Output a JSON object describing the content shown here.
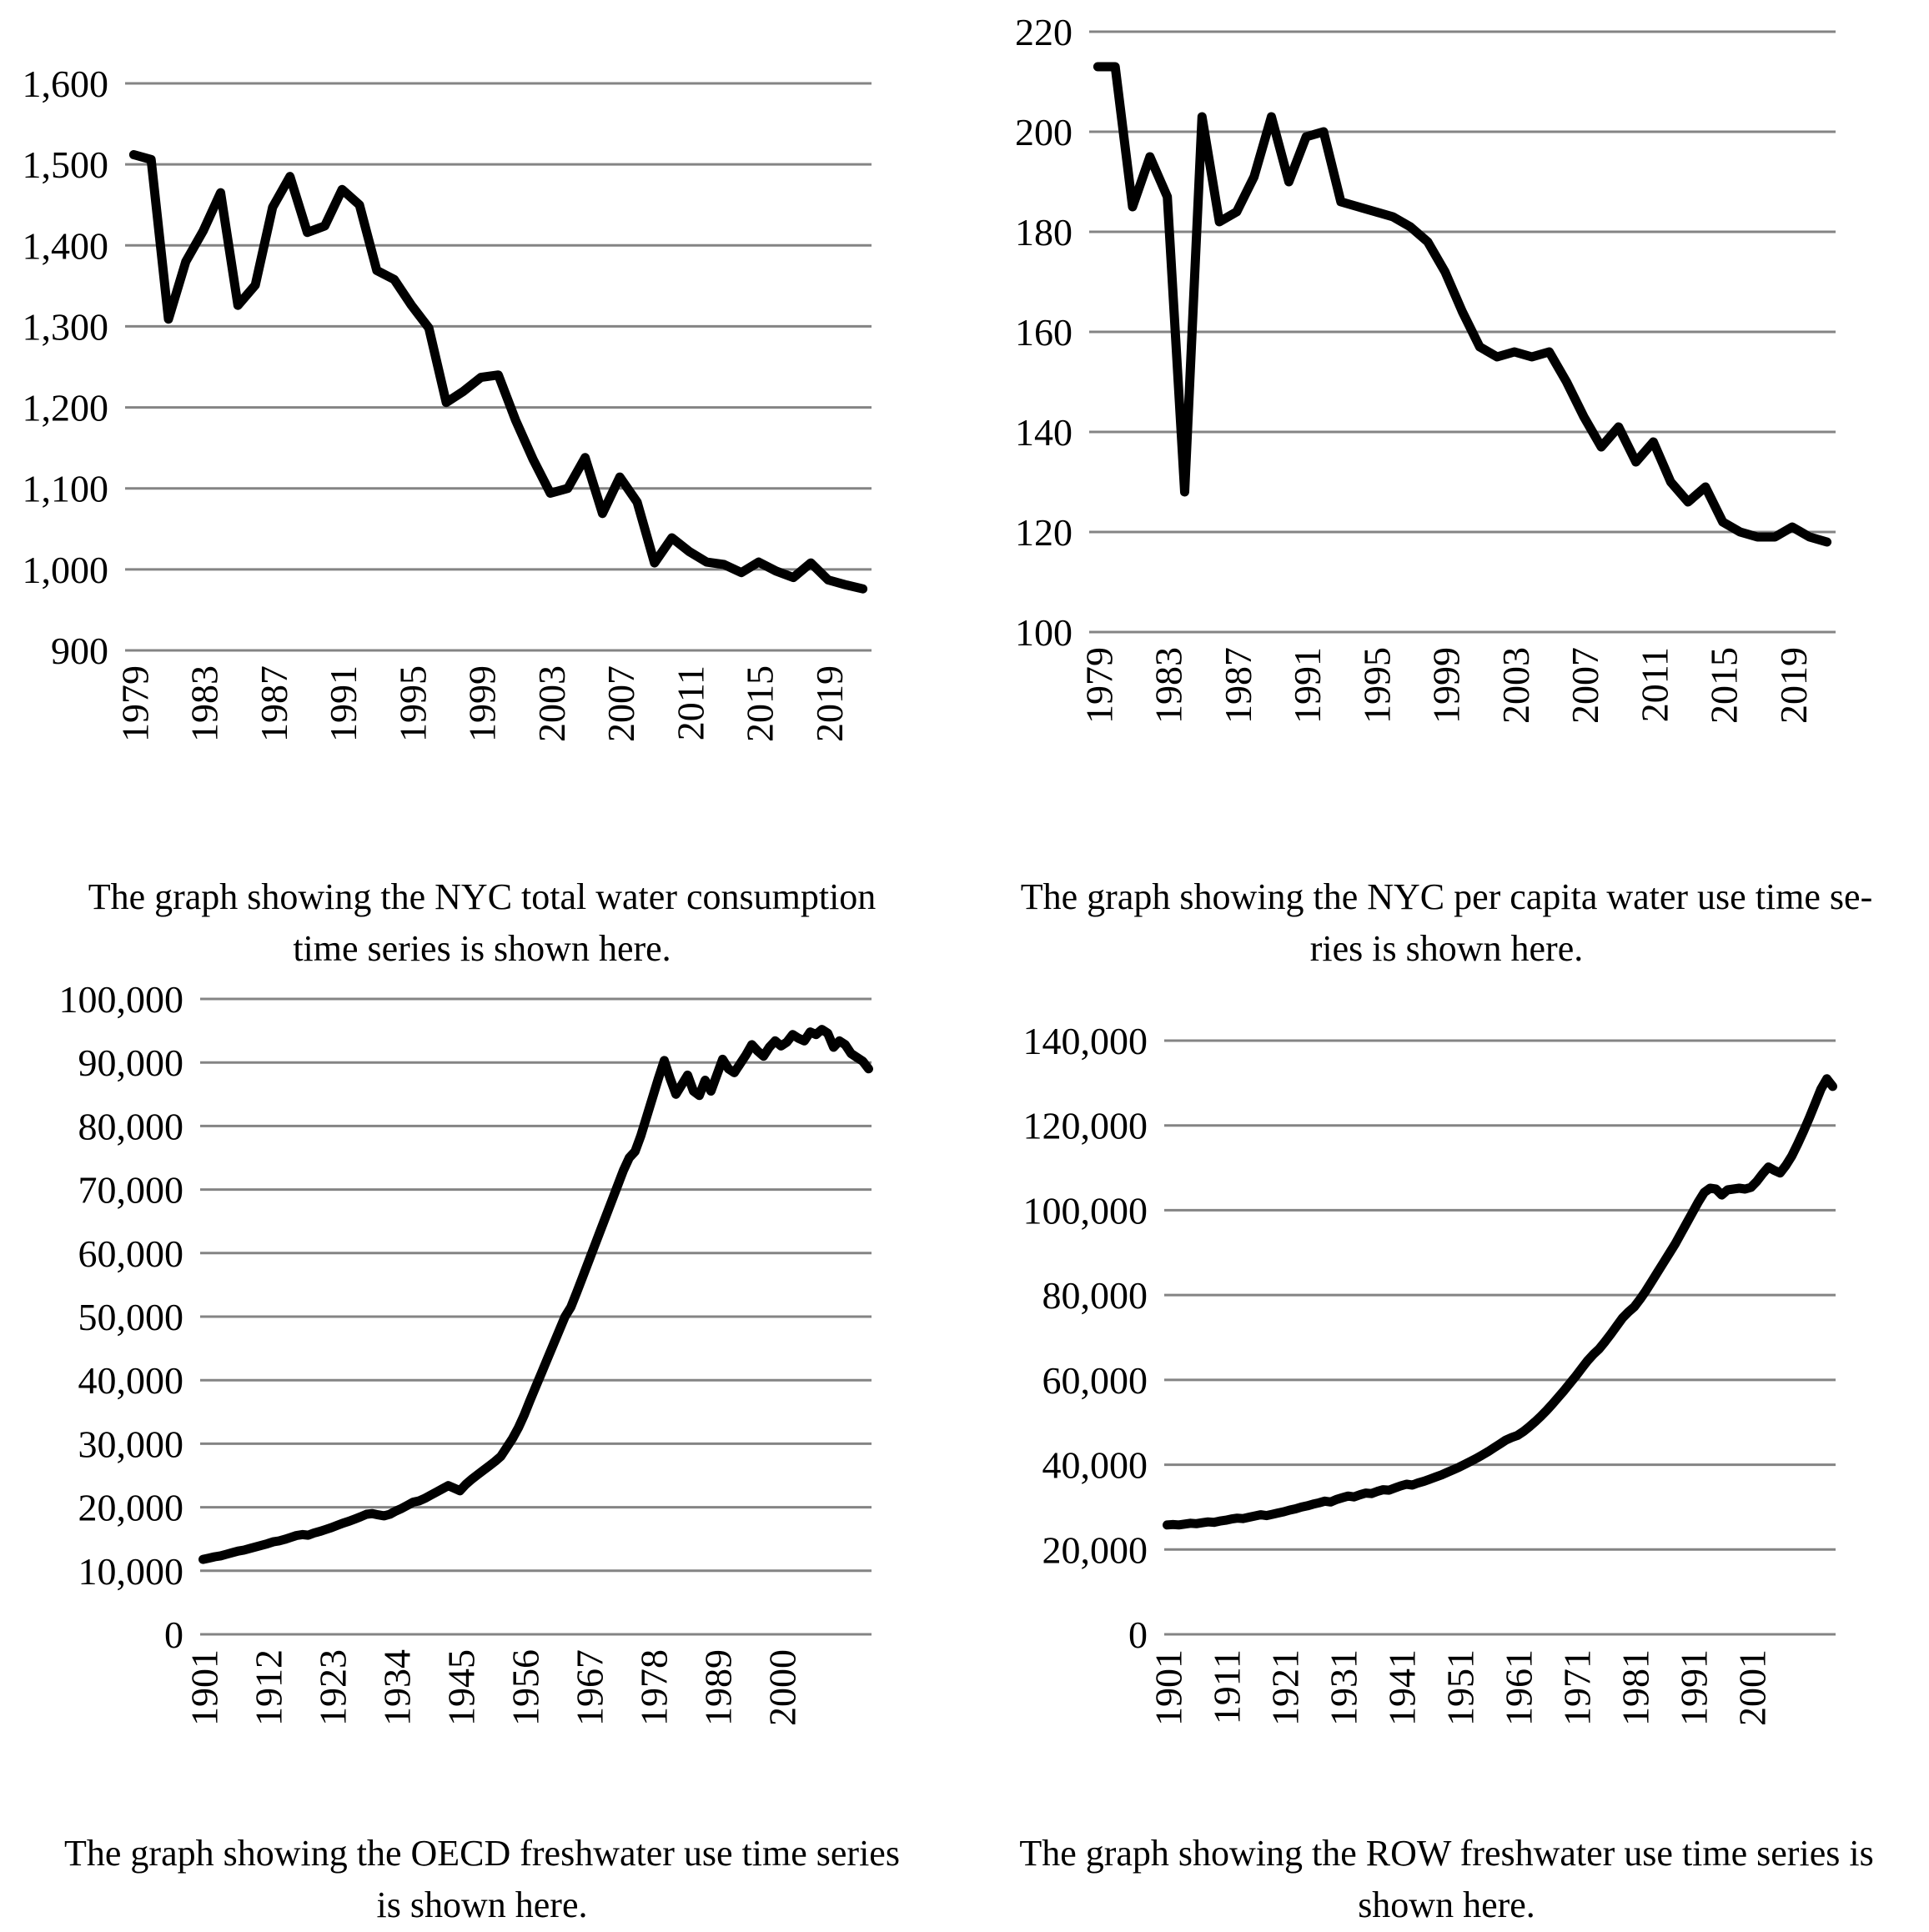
{
  "chart_data": [
    {
      "type": "line",
      "name": "nyc-total-water-consumption",
      "title": "",
      "caption_lines": [
        "The graph showing the NYC total water consumption",
        "time series is shown here."
      ],
      "legend": "none",
      "grid": true,
      "line_color": "#000000",
      "gridline_color": "#848484",
      "x_range": {
        "from": 1979,
        "to": 2021
      },
      "x_tick_labels": [
        "1979",
        "1983",
        "1987",
        "1991",
        "1995",
        "1999",
        "2003",
        "2007",
        "2011",
        "2015",
        "2019"
      ],
      "ylim": [
        900,
        1600
      ],
      "ytick_step": 100,
      "y_tick_labels": [
        "900",
        "1000",
        "1100",
        "1200",
        "1300",
        "1400",
        "1500",
        "1600"
      ],
      "values": [
        1512,
        1506,
        1309,
        1380,
        1418,
        1465,
        1326,
        1351,
        1447,
        1485,
        1416,
        1424,
        1469,
        1450,
        1369,
        1358,
        1326,
        1298,
        1206,
        1220,
        1237,
        1240,
        1184,
        1136,
        1094,
        1100,
        1138,
        1069,
        1114,
        1083,
        1008,
        1039,
        1022,
        1009,
        1006,
        996,
        1009,
        998,
        990,
        1008,
        987,
        981,
        976
      ]
    },
    {
      "type": "line",
      "name": "nyc-per-capita-water-use",
      "title": "",
      "caption_lines": [
        "The graph showing the NYC per capita water use time se-",
        "ries is shown here."
      ],
      "legend": "none",
      "grid": true,
      "line_color": "#000000",
      "gridline_color": "#848484",
      "x_range": {
        "from": 1979,
        "to": 2021
      },
      "x_tick_labels": [
        "1979",
        "1983",
        "1987",
        "1991",
        "1995",
        "1999",
        "2003",
        "2007",
        "2011",
        "2015",
        "2019"
      ],
      "ylim": [
        100,
        220
      ],
      "ytick_step": 20,
      "y_tick_labels": [
        "100",
        "120",
        "140",
        "160",
        "180",
        "200",
        "220"
      ],
      "values": [
        213,
        213,
        185,
        195,
        187,
        128,
        203,
        182,
        184,
        191,
        203,
        190,
        199,
        200,
        186,
        185,
        184,
        183,
        181,
        178,
        172,
        164,
        157,
        155,
        156,
        155,
        156,
        150,
        143,
        137,
        141,
        134,
        138,
        130,
        126,
        129,
        122,
        120,
        119,
        119,
        121,
        119,
        118
      ]
    },
    {
      "type": "line",
      "name": "oecd-freshwater-use",
      "title": "",
      "caption_lines": [
        "The graph showing the OECD freshwater use time series",
        "is shown here."
      ],
      "legend": "none",
      "grid": true,
      "line_color": "#000000",
      "gridline_color": "#848484",
      "x_range": {
        "from": 1901,
        "to": 2015
      },
      "x_tick_labels": [
        "1901",
        "1912",
        "1923",
        "1934",
        "1945",
        "1956",
        "1967",
        "1978",
        "1989",
        "2000"
      ],
      "ylim": [
        0,
        100000
      ],
      "ytick_step": 10000,
      "y_tick_labels": [
        "0",
        "10,000",
        "20,000",
        "30,000",
        "40,000",
        "50,000",
        "60,000",
        "70,000",
        "80,000",
        "90,000",
        "100,000"
      ],
      "values": [
        11800,
        12000,
        12200,
        12350,
        12600,
        12850,
        13100,
        13250,
        13500,
        13750,
        14000,
        14250,
        14550,
        14700,
        14950,
        15250,
        15550,
        15700,
        15600,
        15950,
        16200,
        16500,
        16800,
        17150,
        17500,
        17800,
        18150,
        18500,
        18900,
        19000,
        18800,
        18650,
        18900,
        19400,
        19800,
        20300,
        20800,
        21000,
        21400,
        21900,
        22400,
        22900,
        23400,
        23000,
        22600,
        23600,
        24400,
        25100,
        25800,
        26500,
        27200,
        28000,
        29400,
        30800,
        32500,
        34500,
        36800,
        39000,
        41200,
        43400,
        45600,
        47800,
        50000,
        51500,
        53800,
        56200,
        58600,
        61000,
        63400,
        65800,
        68200,
        70600,
        73000,
        75000,
        76000,
        78500,
        81500,
        84500,
        87500,
        90300,
        87500,
        85000,
        86500,
        88000,
        85500,
        84800,
        87200,
        85500,
        88000,
        90500,
        89000,
        88400,
        89800,
        91200,
        92800,
        91800,
        91000,
        92400,
        93400,
        92600,
        93200,
        94400,
        93800,
        93400,
        94800,
        94400,
        95200,
        94600,
        92400,
        93400,
        92800,
        91400,
        90800,
        90200,
        89000
      ]
    },
    {
      "type": "line",
      "name": "row-freshwater-use",
      "title": "",
      "caption_lines": [
        "The graph showing the ROW freshwater use time series is",
        "shown here."
      ],
      "legend": "none",
      "grid": true,
      "line_color": "#000000",
      "gridline_color": "#848484",
      "x_range": {
        "from": 1901,
        "to": 2015
      },
      "x_tick_labels": [
        "1901",
        "1911",
        "1921",
        "1931",
        "1941",
        "1951",
        "1961",
        "1971",
        "1981",
        "1991",
        "2001"
      ],
      "ylim": [
        0,
        140000
      ],
      "ytick_step": 20000,
      "y_tick_labels": [
        "0",
        "20,000",
        "40,000",
        "60,000",
        "80,000",
        "100,000",
        "120,000",
        "140,000"
      ],
      "values": [
        25800,
        25900,
        25800,
        26000,
        26200,
        26100,
        26300,
        26500,
        26400,
        26700,
        26900,
        27200,
        27400,
        27300,
        27600,
        27900,
        28200,
        28000,
        28300,
        28600,
        28900,
        29300,
        29600,
        30000,
        30300,
        30700,
        31000,
        31400,
        31200,
        31800,
        32200,
        32600,
        32400,
        32900,
        33300,
        33200,
        33700,
        34100,
        34000,
        34500,
        35000,
        35400,
        35200,
        35700,
        36100,
        36600,
        37100,
        37600,
        38200,
        38800,
        39400,
        40100,
        40800,
        41500,
        42300,
        43100,
        44000,
        44900,
        45800,
        46400,
        46900,
        47800,
        48900,
        50100,
        51400,
        52800,
        54300,
        55900,
        57500,
        59200,
        60900,
        62700,
        64500,
        66000,
        67300,
        69000,
        70800,
        72700,
        74600,
        76000,
        77200,
        79000,
        81000,
        83200,
        85400,
        87600,
        89800,
        92000,
        94500,
        97000,
        99500,
        102000,
        104200,
        105200,
        105000,
        103600,
        104800,
        105000,
        105200,
        105000,
        105400,
        106800,
        108600,
        110200,
        109400,
        108800,
        110600,
        112800,
        115600,
        118600,
        121800,
        125200,
        128600,
        131000,
        129200
      ]
    }
  ]
}
